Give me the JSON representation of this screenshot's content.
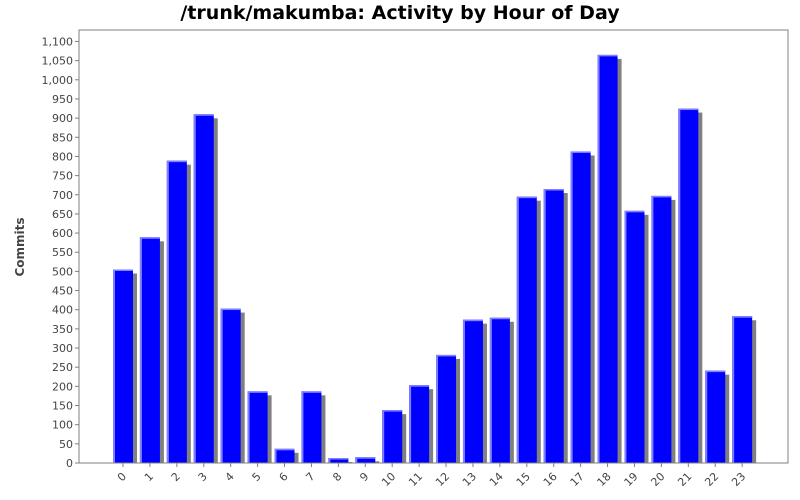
{
  "chart_data": {
    "type": "bar",
    "title": "/trunk/makumba: Activity by Hour of Day",
    "xlabel": "",
    "ylabel": "Commits",
    "categories": [
      "0",
      "1",
      "2",
      "3",
      "4",
      "5",
      "6",
      "7",
      "8",
      "9",
      "10",
      "11",
      "12",
      "13",
      "14",
      "15",
      "16",
      "17",
      "18",
      "19",
      "20",
      "21",
      "22",
      "23"
    ],
    "values": [
      505,
      589,
      789,
      910,
      403,
      187,
      37,
      187,
      13,
      15,
      138,
      203,
      282,
      374,
      379,
      695,
      715,
      813,
      1065,
      658,
      697,
      925,
      241,
      383
    ],
    "ylim": [
      0,
      1125
    ],
    "ytick_step": 50,
    "grid": false,
    "legend": "none",
    "colors": {
      "bar": "#0000ff",
      "bar_highlight": "#8080ff",
      "shadow": "#808080",
      "plot_border": "#808080"
    }
  }
}
